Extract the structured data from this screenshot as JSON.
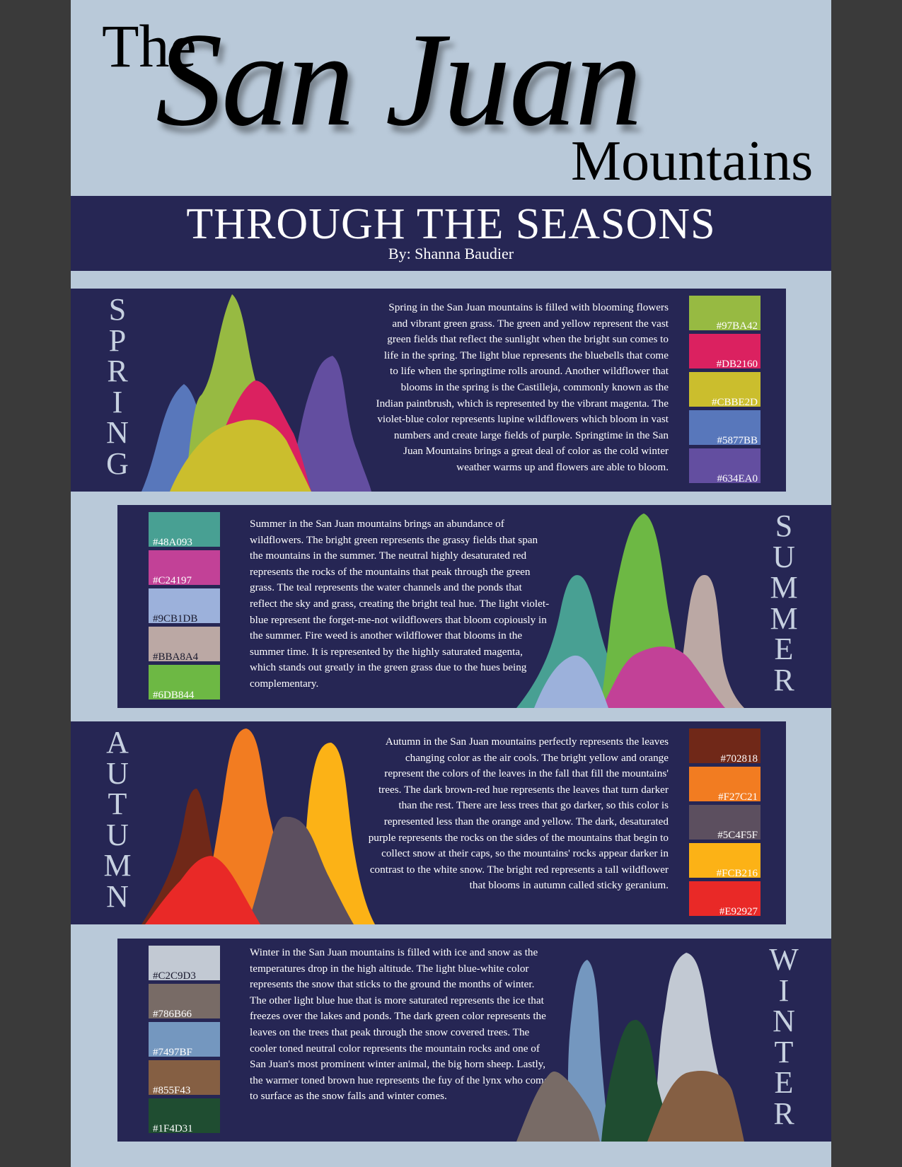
{
  "title": {
    "the": "The",
    "main": "San Juan",
    "sub": "Mountains"
  },
  "banner": {
    "title": "THROUGH THE SEASONS",
    "byline": "By: Shanna Baudier"
  },
  "seasons": {
    "spring": {
      "name": "SPRING",
      "letters": [
        "S",
        "P",
        "R",
        "I",
        "N",
        "G"
      ],
      "text": "Spring in the San Juan mountains is filled with blooming flowers and vibrant green grass. The green and yellow represent the vast green fields that reflect the sunlight when the bright sun comes to life in the spring. The light blue represents the bluebells that come to life when the springtime rolls around. Another wildflower that blooms in the spring is the Castilleja, commonly known as the Indian paintbrush, which is represented by the vibrant magenta. The violet-blue color represents lupine wildflowers which bloom in vast numbers and create large fields of purple. Springtime in the San Juan Mountains brings a great deal of color as the cold winter weather warms up and flowers are able to bloom.",
      "colors": [
        "#97BA42",
        "#DB2160",
        "#CBBE2D",
        "#5877BB",
        "#634EA0"
      ]
    },
    "summer": {
      "name": "SUMMER",
      "letters": [
        "S",
        "U",
        "M",
        "M",
        "E",
        "R"
      ],
      "text": "Summer in the San Juan mountains brings an abundance of wildflowers. The bright green represents the grassy fields that span the mountains in the summer. The neutral highly desaturated red represents the rocks of the mountains that peak through the green grass. The teal represents the water channels and the ponds that reflect the sky and grass, creating the bright teal hue. The light violet-blue represent the forget-me-not wildflowers that bloom copiously in the summer. Fire weed is another wildflower that blooms in the summer time. It is represented by the highly saturated magenta, which stands out greatly in the green grass due to the hues being complementary.",
      "colors": [
        "#48A093",
        "#C24197",
        "#9CB1DB",
        "#BBA8A4",
        "#6DB844"
      ]
    },
    "autumn": {
      "name": "AUTUMN",
      "letters": [
        "A",
        "U",
        "T",
        "U",
        "M",
        "N"
      ],
      "text": "Autumn in the San Juan mountains perfectly represents the leaves changing color as the air cools. The bright yellow and orange represent the colors of the leaves in the fall that fill the mountains' trees. The dark brown-red hue represents the leaves that turn darker than the rest. There are less trees that go darker, so this color is represented less than the orange and yellow. The dark, desaturated purple represents the rocks on the sides of the mountains that begin to collect snow at their caps, so the mountains' rocks appear darker in contrast to the white snow. The bright red represents a tall wildflower that blooms in autumn called sticky geranium.",
      "colors": [
        "#702818",
        "#F27C21",
        "#5C4F5F",
        "#FCB216",
        "#E92927"
      ]
    },
    "winter": {
      "name": "WINTER",
      "letters": [
        "W",
        "I",
        "N",
        "T",
        "E",
        "R"
      ],
      "text": "Winter in the San Juan mountains is filled with ice and snow as the temperatures drop in the high altitude. The light blue-white color represents the snow that sticks to the ground the months of winter. The other light blue hue that is more saturated represents the ice that freezes over the lakes and ponds. The dark green color represents the leaves on the trees that peak through the snow covered trees. The cooler toned neutral color represents the mountain rocks and one of San Juan's most prominent winter animal, the big horn sheep. Lastly, the warmer toned brown hue represents the fuy of the lynx who come to surface as the snow falls and winter comes.",
      "colors": [
        "#C2C9D3",
        "#786B66",
        "#7497BF",
        "#855F43",
        "#1F4D31"
      ]
    }
  }
}
